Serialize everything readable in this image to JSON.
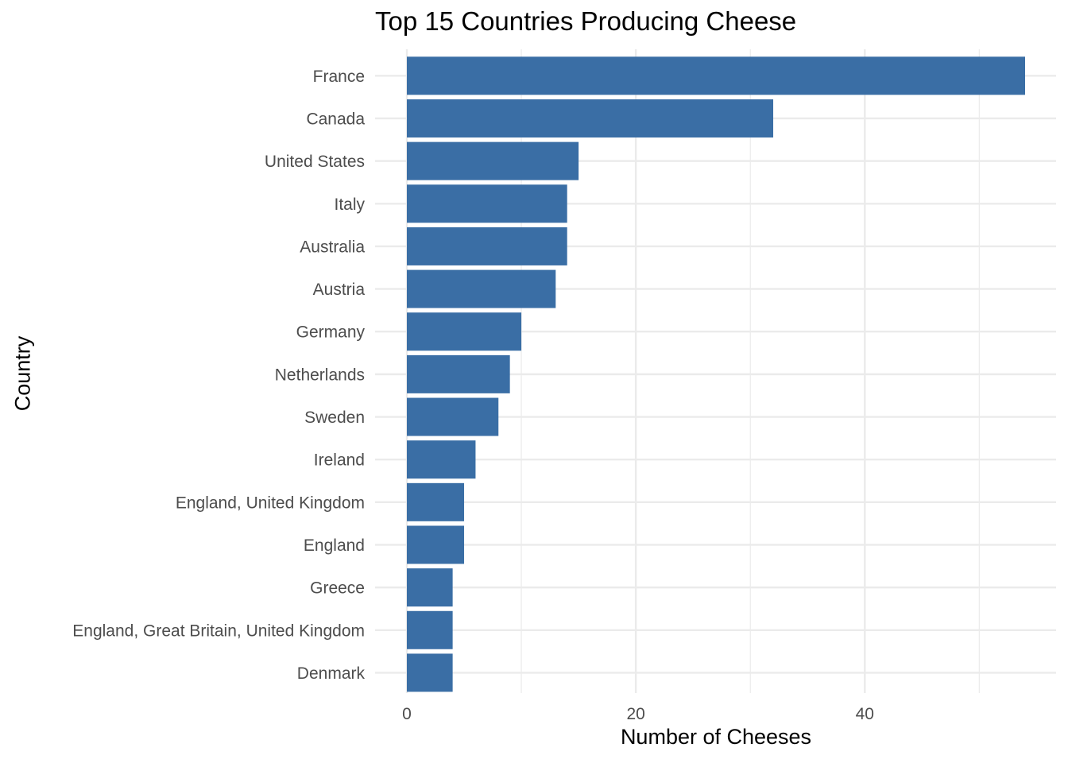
{
  "chart_data": {
    "type": "bar",
    "orientation": "horizontal",
    "title": "Top 15 Countries Producing Cheese",
    "xlabel": "Number of Cheeses",
    "ylabel": "Country",
    "categories": [
      "France",
      "Canada",
      "United States",
      "Italy",
      "Australia",
      "Austria",
      "Germany",
      "Netherlands",
      "Sweden",
      "Ireland",
      "England, United Kingdom",
      "England",
      "Greece",
      "England, Great Britain, United Kingdom",
      "Denmark"
    ],
    "values": [
      54,
      32,
      15,
      14,
      14,
      13,
      10,
      9,
      8,
      6,
      5,
      5,
      4,
      4,
      4
    ],
    "xlim": [
      0,
      54
    ],
    "x_ticks": [
      0,
      20,
      40
    ],
    "x_minor_ticks": [
      10,
      30,
      50
    ],
    "grid": true,
    "legend": "none",
    "colors": {
      "bar": "#3A6EA5",
      "grid": "#EBEBEB",
      "tick_text": "#4D4D4D"
    }
  }
}
